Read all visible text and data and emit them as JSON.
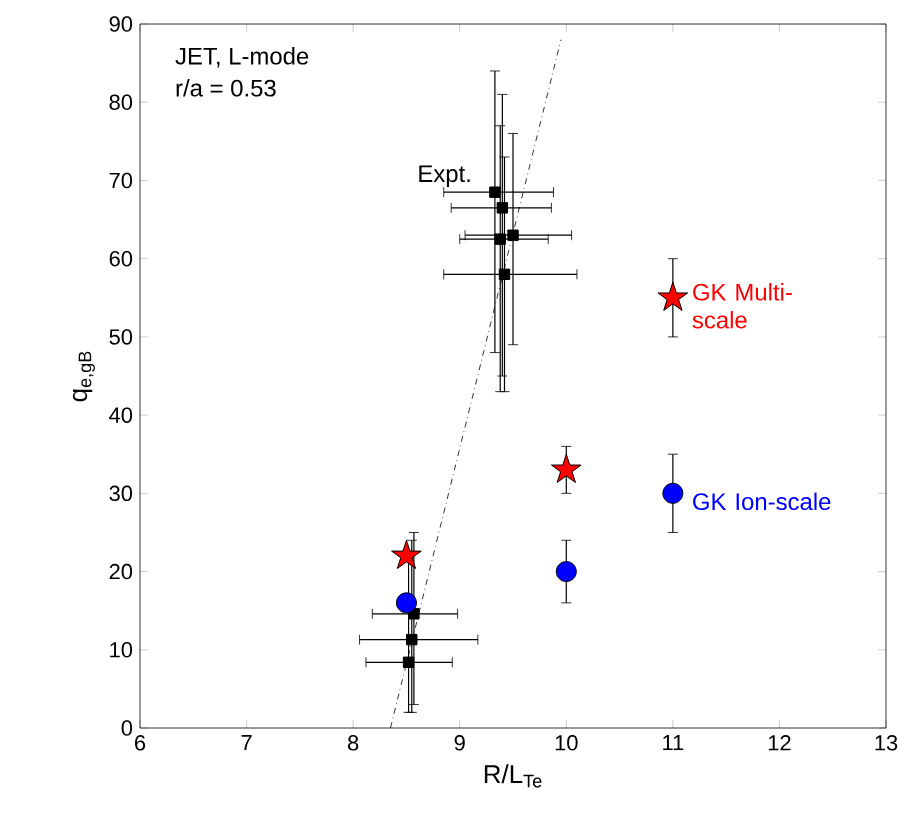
{
  "chart_data": {
    "type": "scatter",
    "xlabel": "R/L$_{Te}$",
    "ylabel": "q$_{e,gB}$",
    "xlim": [
      6,
      13
    ],
    "ylim": [
      0,
      90
    ],
    "xticks": [
      6,
      7,
      8,
      9,
      10,
      11,
      12,
      13
    ],
    "yticks": [
      0,
      10,
      20,
      30,
      40,
      50,
      60,
      70,
      80,
      90
    ],
    "grid": false,
    "annotations": [
      "JET, L-mode",
      "r/a = 0.53"
    ],
    "series": [
      {
        "name": "Expt.",
        "color": "#000000",
        "marker": "square",
        "x": [
          9.33,
          9.4,
          9.38,
          9.5,
          9.42,
          8.57,
          8.55,
          8.52
        ],
        "values": [
          68.5,
          66.5,
          62.5,
          63,
          58,
          14.6,
          11.3,
          8.4
        ],
        "errors": [
          [
            48,
            84
          ],
          [
            45,
            81
          ],
          [
            43,
            77
          ],
          [
            49,
            76
          ],
          [
            43,
            73
          ],
          [
            3,
            25
          ],
          [
            2,
            24
          ],
          [
            2,
            22
          ]
        ],
        "xerrors": [
          [
            8.85,
            9.88
          ],
          [
            8.92,
            9.86
          ],
          [
            9.0,
            9.83
          ],
          [
            9.05,
            10.05
          ],
          [
            8.85,
            10.1
          ],
          [
            8.18,
            8.98
          ],
          [
            8.06,
            9.17
          ],
          [
            8.12,
            8.93
          ]
        ]
      },
      {
        "name": "GK Multi-scale",
        "color": "#ff0000",
        "marker": "star",
        "x": [
          8.5,
          10,
          11
        ],
        "values": [
          22,
          33,
          55
        ],
        "errors": [
          null,
          [
            30,
            36
          ],
          [
            50,
            60
          ]
        ]
      },
      {
        "name": "GK Ion-scale",
        "color": "#0000ff",
        "marker": "circle",
        "x": [
          8.5,
          10,
          11
        ],
        "values": [
          16,
          20,
          30
        ],
        "errors": [
          null,
          [
            16,
            24
          ],
          [
            25,
            35
          ]
        ]
      },
      {
        "type": "line",
        "color": "#000000",
        "line_style": "dashdot",
        "marker": "none",
        "x": [
          8.35,
          9.95
        ],
        "values": [
          0,
          88
        ]
      }
    ]
  }
}
